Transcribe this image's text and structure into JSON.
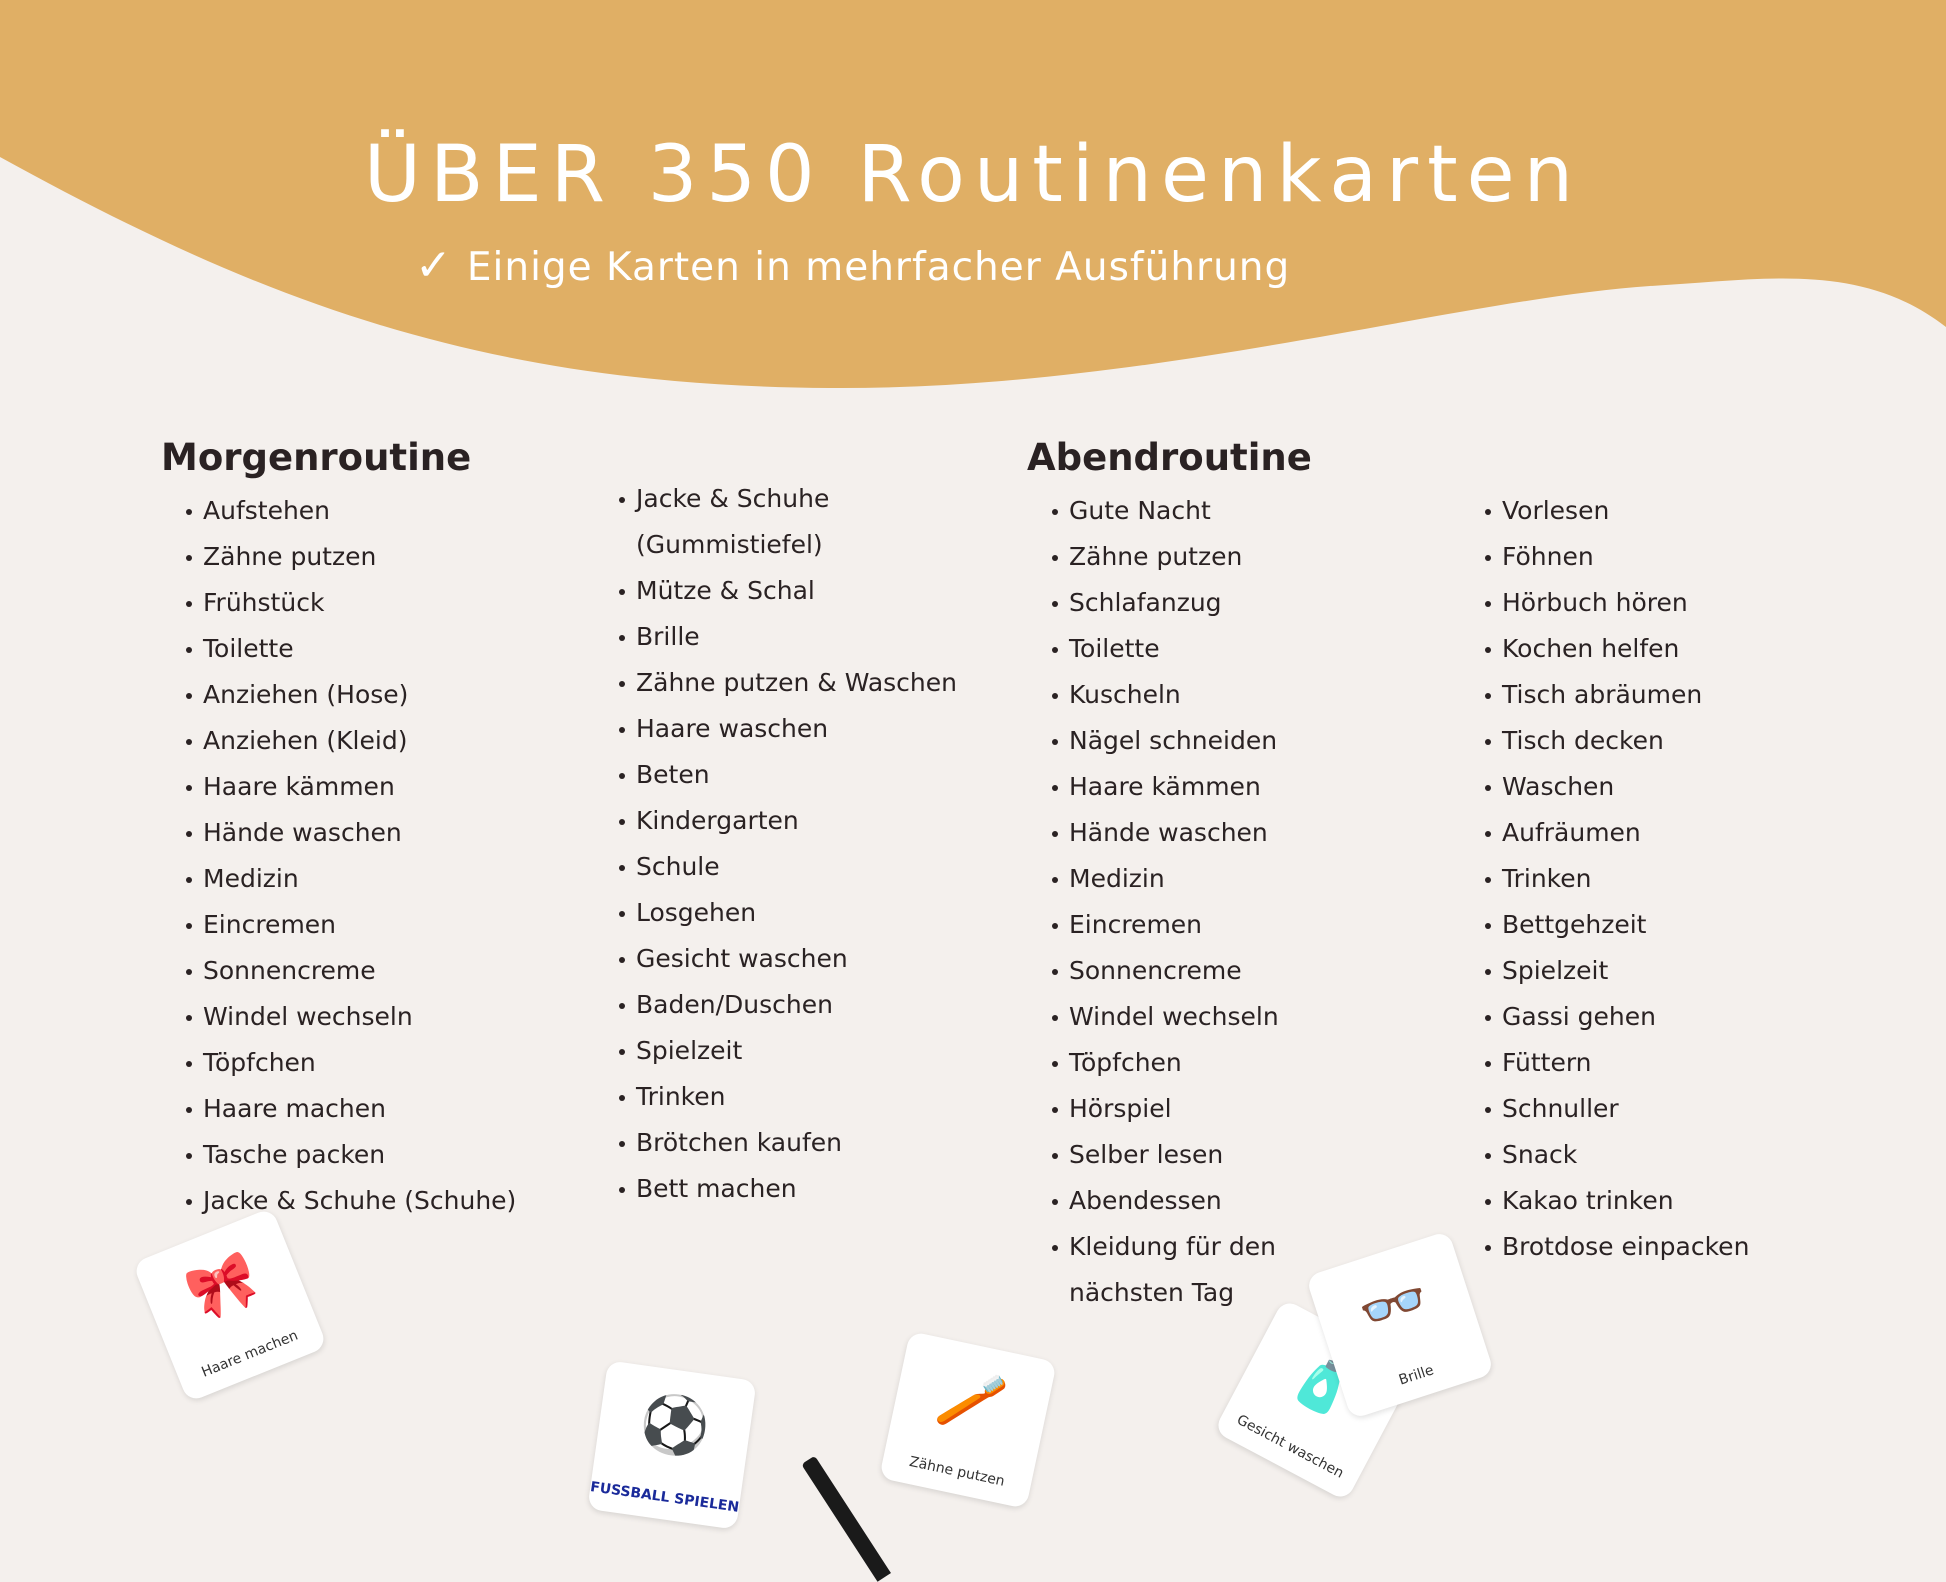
{
  "colors": {
    "banner": "#e0af65",
    "background": "#f4f0ed",
    "text": "#2a2223"
  },
  "header": {
    "title": "ÜBER 350 Routinenkarten",
    "subtitle_icon": "check-icon",
    "subtitle_check": "✓",
    "subtitle": "Einige Karten in mehrfacher Ausführung"
  },
  "morning": {
    "heading": "Morgenroutine",
    "col1": [
      "Aufstehen",
      "Zähne putzen",
      "Frühstück",
      "Toilette",
      "Anziehen (Hose)",
      "Anziehen (Kleid)",
      "Haare kämmen",
      "Hände waschen",
      "Medizin",
      "Eincremen",
      "Sonnencreme",
      "Windel wechseln",
      "Töpfchen",
      "Haare machen",
      "Tasche packen",
      "Jacke & Schuhe (Schuhe)"
    ],
    "col2": [
      "Jacke & Schuhe",
      "(Gummistiefel)",
      "Mütze & Schal",
      "Brille",
      "Zähne putzen & Waschen",
      "Haare waschen",
      "Beten",
      "Kindergarten",
      "Schule",
      "Losgehen",
      "Gesicht waschen",
      "Baden/Duschen",
      "Spielzeit",
      "Trinken",
      "Brötchen kaufen",
      "Bett machen"
    ]
  },
  "evening": {
    "heading": "Abendroutine",
    "col1": [
      "Gute Nacht",
      "Zähne putzen",
      "Schlafanzug",
      "Toilette",
      "Kuscheln",
      "Nägel schneiden",
      "Haare kämmen",
      "Hände waschen",
      "Medizin",
      "Eincremen",
      "Sonnencreme",
      "Windel wechseln",
      "Töpfchen",
      "Hörspiel",
      "Selber lesen",
      "Abendessen",
      "Kleidung für den",
      "nächsten Tag"
    ],
    "col2": [
      "Vorlesen",
      "Föhnen",
      "Hörbuch hören",
      "Kochen helfen",
      "Tisch abräumen",
      "Tisch decken",
      "Waschen",
      "Aufräumen",
      "Trinken",
      "Bettgehzeit",
      "Spielzeit",
      "Gassi gehen",
      "Füttern",
      "Schnuller",
      "Snack",
      "Kakao trinken",
      "Brotdose einpacken"
    ]
  },
  "cards": [
    {
      "label": "Haare machen",
      "icon": "hair-clip-icon",
      "glyph": "🎀"
    },
    {
      "label": "FUSSBALL SPIELEN",
      "icon": "soccer-ball-icon",
      "glyph": "⚽"
    },
    {
      "label": "Zähne putzen",
      "icon": "toothbrush-icon",
      "glyph": "🪥"
    },
    {
      "label": "Gesicht waschen",
      "icon": "soap-icon",
      "glyph": "🧴"
    },
    {
      "label": "Brille",
      "icon": "glasses-icon",
      "glyph": "👓"
    }
  ]
}
